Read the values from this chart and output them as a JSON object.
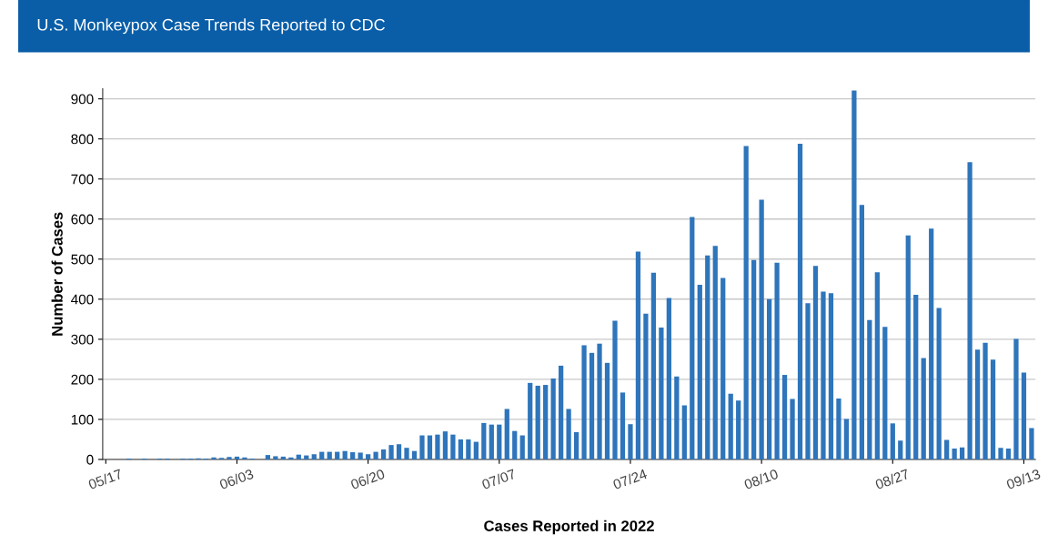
{
  "chart_data": {
    "type": "bar",
    "title": "U.S. Monkeypox Case Trends Reported to CDC",
    "xlabel": "Cases Reported in 2022",
    "ylabel": "Number of Cases",
    "categories": [
      "05/17",
      null,
      null,
      null,
      null,
      null,
      null,
      null,
      null,
      null,
      null,
      null,
      null,
      null,
      null,
      null,
      null,
      "06/03",
      null,
      null,
      null,
      null,
      null,
      null,
      null,
      null,
      null,
      null,
      null,
      null,
      null,
      null,
      null,
      null,
      "06/20",
      null,
      null,
      null,
      null,
      null,
      null,
      null,
      null,
      null,
      null,
      null,
      null,
      null,
      null,
      null,
      null,
      "07/07",
      null,
      null,
      null,
      null,
      null,
      null,
      null,
      null,
      null,
      null,
      null,
      null,
      null,
      null,
      null,
      null,
      "07/24",
      null,
      null,
      null,
      null,
      null,
      null,
      null,
      null,
      null,
      null,
      null,
      null,
      null,
      null,
      null,
      null,
      "08/10",
      null,
      null,
      null,
      null,
      null,
      null,
      null,
      null,
      null,
      null,
      null,
      null,
      null,
      null,
      null,
      null,
      "08/27",
      null,
      null,
      null,
      null,
      null,
      null,
      null,
      null,
      null,
      null,
      null,
      null,
      null,
      null,
      null,
      null,
      "09/13",
      null
    ],
    "values": [
      0,
      0,
      0,
      2,
      0,
      2,
      0,
      2,
      2,
      0,
      2,
      2,
      3,
      2,
      5,
      4,
      6,
      7,
      5,
      2,
      0,
      11,
      8,
      7,
      5,
      12,
      10,
      13,
      19,
      19,
      19,
      21,
      18,
      17,
      13,
      19,
      25,
      36,
      38,
      29,
      21,
      60,
      60,
      62,
      70,
      62,
      50,
      50,
      44,
      91,
      87,
      87,
      126,
      71,
      60,
      191,
      184,
      186,
      202,
      234,
      126,
      68,
      285,
      266,
      289,
      241,
      346,
      167,
      88,
      519,
      364,
      466,
      329,
      403,
      207,
      135,
      605,
      436,
      509,
      533,
      453,
      164,
      147,
      782,
      498,
      648,
      400,
      491,
      211,
      151,
      788,
      390,
      483,
      419,
      415,
      152,
      101,
      921,
      635,
      348,
      467,
      331,
      90,
      47,
      559,
      411,
      253,
      576,
      378,
      49,
      27,
      30,
      742,
      274,
      291,
      249,
      29,
      27,
      301,
      217,
      78
    ],
    "color": "#2e75bb",
    "ylim": [
      0,
      925
    ],
    "yticks": [
      0,
      100,
      200,
      300,
      400,
      500,
      600,
      700,
      800,
      900
    ],
    "grid": "y"
  }
}
